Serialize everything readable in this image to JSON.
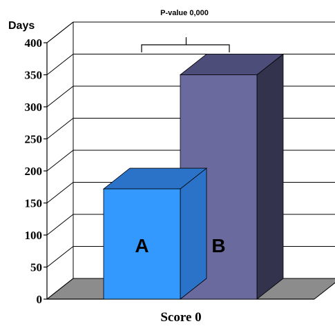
{
  "chart_data": {
    "type": "bar",
    "title": "",
    "ylabel": "Days",
    "xlabel": "",
    "categories": [
      "Score 0"
    ],
    "series": [
      {
        "name": "A",
        "values": [
          172
        ],
        "color": "#3399ff"
      },
      {
        "name": "B",
        "values": [
          350
        ],
        "color": "#6a6a9e"
      }
    ],
    "ylim": [
      0,
      400
    ],
    "yticks": [
      0,
      50,
      100,
      150,
      200,
      250,
      300,
      350,
      400
    ],
    "grid": true,
    "legend": "none",
    "annotation": "P-value 0,000"
  },
  "colors": {
    "bar_a_front": "#3399ff",
    "bar_a_top": "#2b73c9",
    "bar_b_front": "#6a6a9e",
    "bar_b_top": "#4d4d7a",
    "bar_b_side": "#33334d",
    "floor": "#8c8c8c",
    "grid": "#000000"
  }
}
